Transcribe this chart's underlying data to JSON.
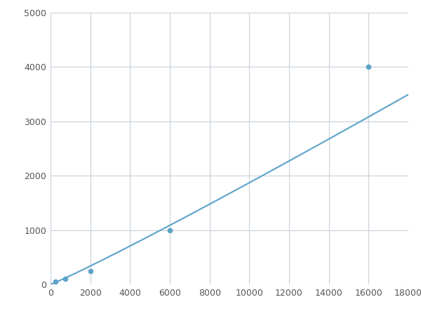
{
  "x_data": [
    250,
    750,
    2000,
    6000,
    16000
  ],
  "y_data": [
    50,
    100,
    250,
    1000,
    4000
  ],
  "x_curve_start": 0,
  "line_color": "#5ba3c9",
  "marker_color": "#5ba3c9",
  "marker_size": 5,
  "line_width": 1.5,
  "xlim": [
    0,
    18000
  ],
  "ylim": [
    0,
    5000
  ],
  "xticks": [
    0,
    2000,
    4000,
    6000,
    8000,
    10000,
    12000,
    14000,
    16000,
    18000
  ],
  "yticks": [
    0,
    1000,
    2000,
    3000,
    4000,
    5000
  ],
  "grid_color": "#c8d0d8",
  "grid_linewidth": 0.8,
  "background_color": "#ffffff",
  "figure_bg": "#ffffff",
  "tick_labelsize": 9,
  "tick_color": "#555555"
}
